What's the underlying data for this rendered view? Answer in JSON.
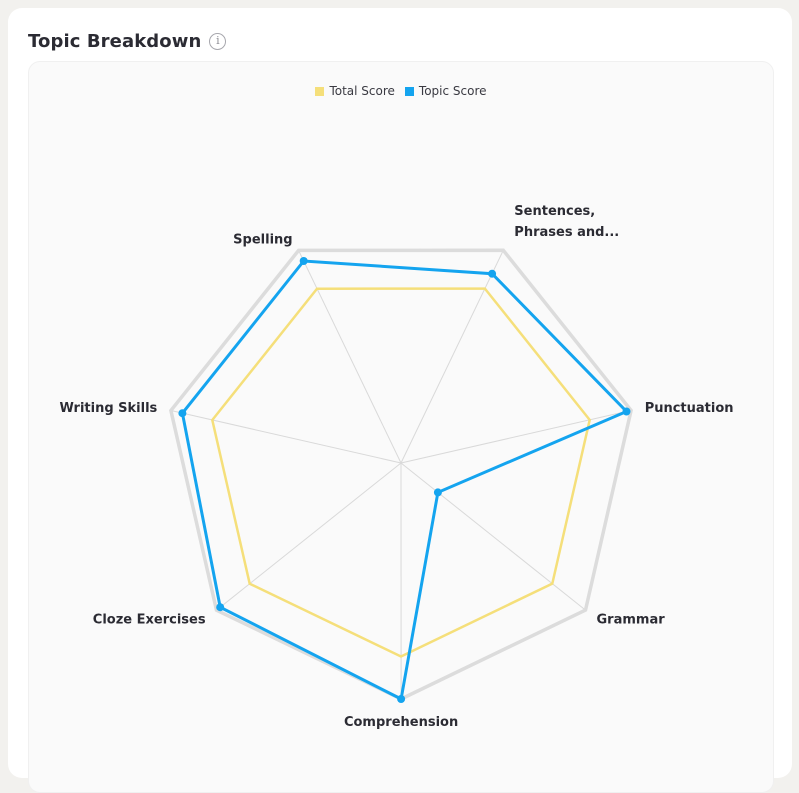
{
  "header": {
    "title": "Topic Breakdown",
    "info_icon": "info-icon"
  },
  "colors": {
    "total": "#f5df7a",
    "topic": "#14a4ef",
    "outline": "#dcdcdc",
    "spoke": "#d9d9d9"
  },
  "chart_data": {
    "type": "radar",
    "title": "",
    "categories": [
      "Sentences, Phrases and...",
      "Punctuation",
      "Grammar",
      "Comprehension",
      "Cloze Exercises",
      "Writing Skills",
      "Spelling"
    ],
    "category_lines": [
      [
        "Sentences,",
        "Phrases and..."
      ],
      [
        "Punctuation"
      ],
      [
        "Grammar"
      ],
      [
        "Comprehension"
      ],
      [
        "Cloze Exercises"
      ],
      [
        "Writing Skills"
      ],
      [
        "Spelling"
      ]
    ],
    "range": [
      0,
      100
    ],
    "grid": "spokes",
    "legend_position": "top-center",
    "series": [
      {
        "name": "Total Score",
        "values": [
          82,
          82,
          82,
          82,
          82,
          82,
          82
        ]
      },
      {
        "name": "Topic Score",
        "values": [
          89,
          98,
          20,
          100,
          98,
          95,
          95
        ]
      }
    ]
  }
}
